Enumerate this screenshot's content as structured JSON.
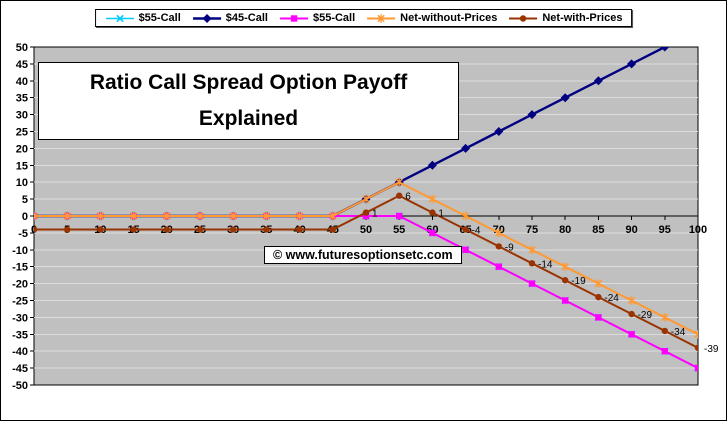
{
  "chart_data": {
    "type": "line",
    "title": "Ratio Call Spread Option Payoff Explained",
    "title_lines": [
      "Ratio Call Spread Option Payoff",
      "Explained"
    ],
    "watermark": "© www.futuresoptionsetc.com",
    "legend_position": "top",
    "grid": "horizontal",
    "plot_bg": "#c0c0c0",
    "grid_color": "#dcdcdc",
    "axis_color": "#000000",
    "xlim": [
      0,
      100
    ],
    "ylim": [
      -50,
      50
    ],
    "x_axis_at_y": 0,
    "xticks": [
      0,
      5,
      10,
      15,
      20,
      25,
      30,
      35,
      40,
      45,
      50,
      55,
      60,
      65,
      70,
      75,
      80,
      85,
      90,
      95,
      100
    ],
    "yticks": [
      -50,
      -45,
      -40,
      -35,
      -30,
      -25,
      -20,
      -15,
      -10,
      -5,
      0,
      5,
      10,
      15,
      20,
      25,
      30,
      35,
      40,
      45,
      50
    ],
    "x": [
      0,
      5,
      10,
      15,
      20,
      25,
      30,
      35,
      40,
      45,
      50,
      55,
      60,
      65,
      70,
      75,
      80,
      85,
      90,
      95,
      100
    ],
    "series": [
      {
        "name": "$55-Call",
        "color": "#00CCFF",
        "marker": "x",
        "width": 1.6,
        "values": [
          0,
          0,
          0,
          0,
          0,
          0,
          0,
          0,
          0,
          0,
          0,
          0,
          -5,
          -10,
          -15,
          -20,
          -25,
          -30,
          -35,
          -40,
          -45
        ]
      },
      {
        "name": "$45-Call",
        "color": "#000080",
        "marker": "diamond",
        "width": 2.4,
        "values": [
          0,
          0,
          0,
          0,
          0,
          0,
          0,
          0,
          0,
          0,
          5,
          10,
          15,
          20,
          25,
          30,
          35,
          40,
          45,
          50,
          55
        ]
      },
      {
        "name": "$55-Call",
        "color": "#FF00FF",
        "marker": "square",
        "width": 2,
        "values": [
          0,
          0,
          0,
          0,
          0,
          0,
          0,
          0,
          0,
          0,
          0,
          0,
          -5,
          -10,
          -15,
          -20,
          -25,
          -30,
          -35,
          -40,
          -45
        ]
      },
      {
        "name": "Net-without-Prices",
        "color": "#FF9933",
        "marker": "star",
        "width": 2,
        "values": [
          0,
          0,
          0,
          0,
          0,
          0,
          0,
          0,
          0,
          0,
          5,
          10,
          5,
          0,
          -5,
          -10,
          -15,
          -20,
          -25,
          -30,
          -35
        ]
      },
      {
        "name": "Net-with-Prices",
        "color": "#993300",
        "marker": "circle",
        "width": 2,
        "values": [
          -4,
          -4,
          -4,
          -4,
          -4,
          -4,
          -4,
          -4,
          -4,
          -4,
          1,
          6,
          1,
          -4,
          -9,
          -14,
          -19,
          -24,
          -29,
          -34,
          -39
        ],
        "labels": [
          null,
          null,
          null,
          null,
          null,
          null,
          null,
          null,
          null,
          null,
          "1",
          "6",
          "1",
          "-4",
          "-9",
          "-14",
          "-19",
          "-24",
          "-29",
          "-34",
          "-39"
        ]
      }
    ]
  }
}
